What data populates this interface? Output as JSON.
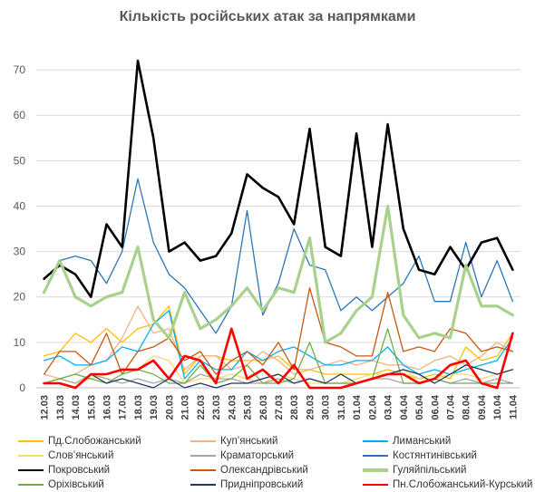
{
  "chart_data": {
    "type": "line",
    "title": "Кількість російських атак за напрямками",
    "xlabel": "",
    "ylabel": "",
    "ylim": [
      0,
      75
    ],
    "yticks": [
      0,
      10,
      20,
      30,
      40,
      50,
      60,
      70
    ],
    "grid": "horizontal",
    "legend_position": "bottom",
    "categories": [
      "12.03",
      "13.03",
      "14.03",
      "15.03",
      "16.03",
      "17.03",
      "18.03",
      "19.03",
      "20.03",
      "21.03",
      "22.03",
      "23.03",
      "24.03",
      "25.03",
      "26.03",
      "27.03",
      "28.03",
      "29.03",
      "30.03",
      "31.03",
      "01.04",
      "02.04",
      "03.04",
      "04.04",
      "05.04",
      "06.04",
      "07.04",
      "08.04",
      "09.04",
      "10.04",
      "11.04"
    ],
    "series": [
      {
        "name": "Пд.Слобожанський",
        "color": "#FFC000",
        "width": 1.3,
        "values": [
          7,
          8,
          12,
          10,
          13,
          10,
          13,
          14,
          18,
          3,
          7,
          7,
          6,
          6,
          6,
          7,
          4,
          4,
          3,
          3,
          3,
          3,
          4,
          3,
          2,
          3,
          2,
          9,
          6,
          7,
          12
        ]
      },
      {
        "name": "Куп’янський",
        "color": "#F4B183",
        "width": 1.3,
        "values": [
          3,
          2,
          3,
          5,
          6,
          11,
          18,
          12,
          13,
          4,
          7,
          7,
          4,
          5,
          8,
          6,
          3,
          4,
          5,
          6,
          5,
          6,
          5,
          5,
          4,
          6,
          7,
          5,
          7,
          10,
          8
        ]
      },
      {
        "name": "Лиманський",
        "color": "#00B0F0",
        "width": 1.3,
        "values": [
          6,
          7,
          5,
          5,
          6,
          9,
          8,
          14,
          17,
          2,
          6,
          4,
          4,
          8,
          6,
          8,
          9,
          7,
          5,
          5,
          6,
          6,
          9,
          5,
          3,
          4,
          3,
          4,
          5,
          6,
          11
        ]
      },
      {
        "name": "Слов’янський",
        "color": "#FFD966",
        "width": 1.3,
        "values": [
          1,
          2,
          1,
          2,
          3,
          4,
          4,
          7,
          6,
          1,
          2,
          2,
          3,
          2,
          1,
          3,
          2,
          1,
          1,
          1,
          2,
          3,
          3,
          4,
          2,
          2,
          3,
          3,
          2,
          3,
          4
        ]
      },
      {
        "name": "Краматорський",
        "color": "#A6A6A6",
        "width": 1.3,
        "values": [
          1,
          2,
          1,
          3,
          2,
          1,
          2,
          1,
          2,
          1,
          3,
          2,
          2,
          1,
          1,
          2,
          1,
          2,
          1,
          1,
          1,
          2,
          2,
          1,
          1,
          2,
          1,
          2,
          1,
          2,
          1
        ]
      },
      {
        "name": "Костянтинівський",
        "color": "#2E75B6",
        "width": 1.3,
        "values": [
          21,
          28,
          29,
          28,
          23,
          30,
          46,
          32,
          25,
          22,
          17,
          12,
          18,
          39,
          16,
          23,
          35,
          27,
          26,
          17,
          20,
          17,
          20,
          23,
          29,
          19,
          19,
          32,
          20,
          28,
          19
        ]
      },
      {
        "name": "Покровський",
        "color": "#000000",
        "width": 2.6,
        "values": [
          24,
          27,
          25,
          20,
          36,
          31,
          72,
          55,
          30,
          32,
          28,
          29,
          34,
          47,
          44,
          42,
          36,
          57,
          31,
          29,
          56,
          31,
          58,
          35,
          26,
          25,
          31,
          26,
          32,
          33,
          26
        ]
      },
      {
        "name": "Олександрівський",
        "color": "#C55A11",
        "width": 1.3,
        "values": [
          3,
          8,
          8,
          5,
          12,
          3,
          8,
          9,
          11,
          6,
          8,
          3,
          6,
          8,
          5,
          10,
          4,
          22,
          10,
          9,
          7,
          7,
          21,
          8,
          9,
          8,
          13,
          12,
          8,
          9,
          8
        ]
      },
      {
        "name": "Гуляйпільський",
        "color": "#A9D18E",
        "width": 3.2,
        "values": [
          21,
          28,
          20,
          18,
          20,
          21,
          31,
          15,
          11,
          21,
          13,
          15,
          18,
          22,
          17,
          22,
          21,
          33,
          10,
          12,
          17,
          20,
          40,
          16,
          11,
          12,
          11,
          27,
          18,
          18,
          16
        ]
      },
      {
        "name": "Оріхівський",
        "color": "#70AD47",
        "width": 1.3,
        "values": [
          1,
          2,
          3,
          2,
          1,
          3,
          4,
          3,
          1,
          1,
          5,
          1,
          2,
          5,
          1,
          1,
          2,
          10,
          1,
          1,
          1,
          2,
          13,
          1,
          1,
          2,
          1,
          1,
          1,
          1,
          1
        ]
      },
      {
        "name": "Придніпровський",
        "color": "#203864",
        "width": 1.3,
        "values": [
          1,
          1,
          0,
          3,
          1,
          2,
          1,
          0,
          2,
          0,
          1,
          0,
          1,
          1,
          2,
          3,
          1,
          2,
          1,
          3,
          1,
          2,
          3,
          4,
          3,
          1,
          3,
          5,
          4,
          3,
          4
        ]
      },
      {
        "name": "Пн.Слобожанський-Курський",
        "color": "#FF0000",
        "width": 2.6,
        "values": [
          1,
          1,
          0,
          3,
          3,
          4,
          4,
          6,
          2,
          7,
          6,
          1,
          13,
          2,
          4,
          1,
          5,
          0,
          0,
          0,
          1,
          2,
          3,
          3,
          1,
          2,
          5,
          6,
          1,
          0,
          12
        ]
      }
    ]
  }
}
